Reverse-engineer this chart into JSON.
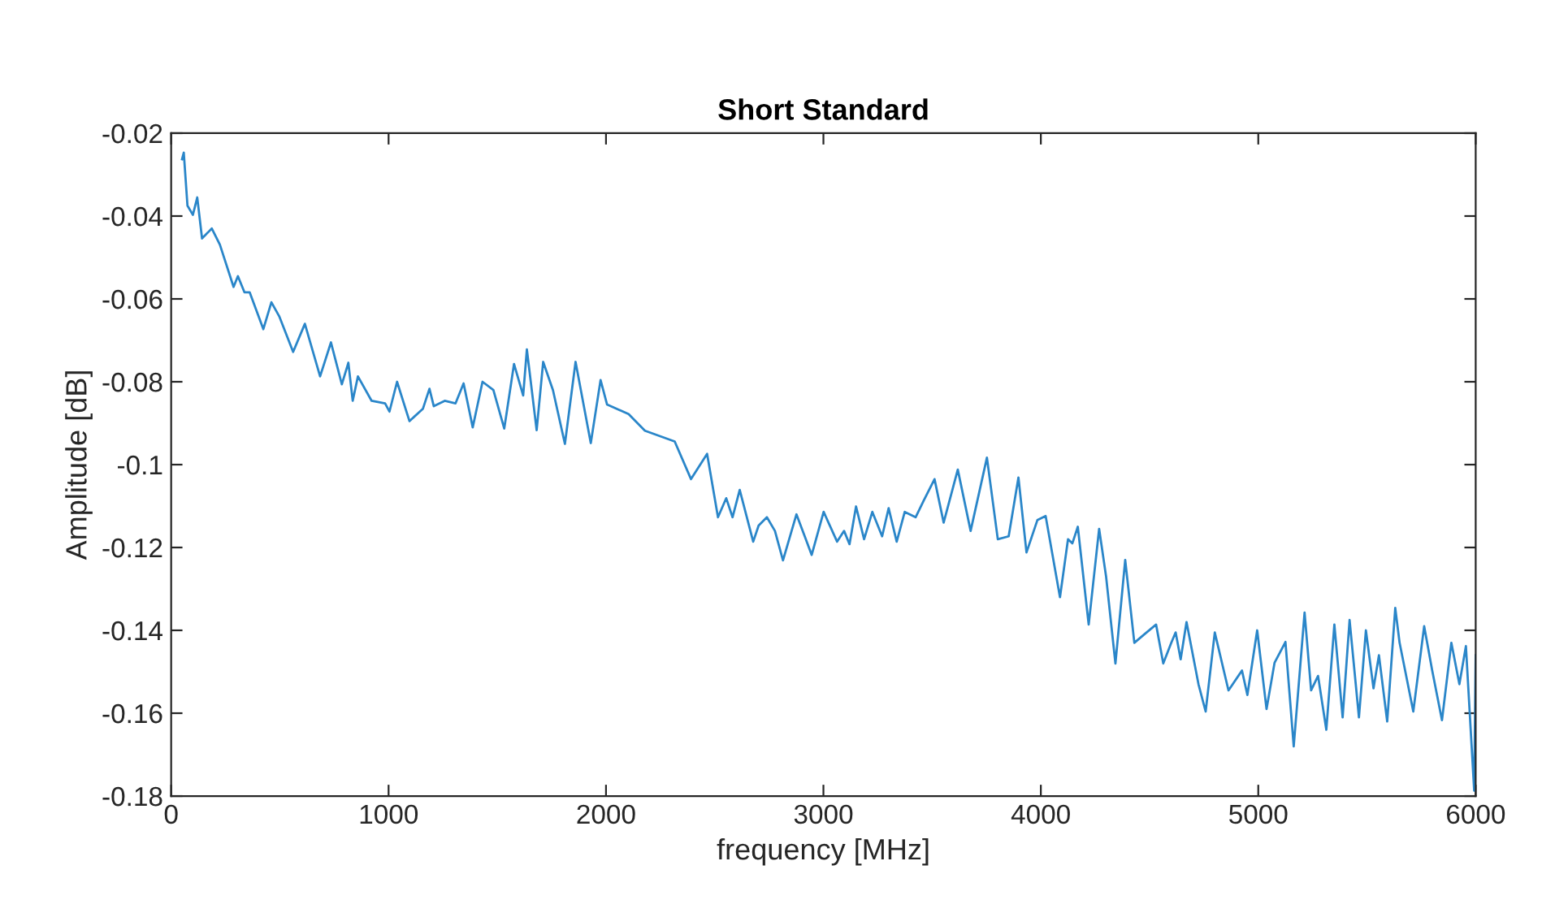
{
  "chart_data": {
    "type": "line",
    "title": "Short Standard",
    "xlabel": "frequency [MHz]",
    "ylabel": "Amplitude [dB]",
    "xlim": [
      0,
      6000
    ],
    "ylim": [
      -0.18,
      -0.02
    ],
    "xticks": [
      0,
      1000,
      2000,
      3000,
      4000,
      5000,
      6000
    ],
    "yticks": [
      -0.18,
      -0.16,
      -0.14,
      -0.12,
      -0.1,
      -0.08,
      -0.06,
      -0.04,
      -0.02
    ],
    "grid": false,
    "series": [
      {
        "color": "#2a86c9",
        "x": [
          50,
          58,
          75,
          100,
          120,
          142,
          187,
          224,
          287,
          307,
          337,
          361,
          424,
          461,
          498,
          561,
          615,
          685,
          735,
          785,
          815,
          835,
          859,
          922,
          984,
          1004,
          1039,
          1096,
          1158,
          1188,
          1208,
          1258,
          1308,
          1345,
          1387,
          1432,
          1482,
          1532,
          1577,
          1619,
          1636,
          1681,
          1711,
          1756,
          1811,
          1860,
          1930,
          1975,
          2005,
          2104,
          2179,
          2316,
          2391,
          2465,
          2515,
          2553,
          2582,
          2615,
          2677,
          2702,
          2740,
          2777,
          2814,
          2876,
          2914,
          2946,
          3001,
          3063,
          3095,
          3120,
          3150,
          3187,
          3225,
          3270,
          3300,
          3337,
          3374,
          3424,
          3461,
          3511,
          3553,
          3618,
          3677,
          3752,
          3802,
          3852,
          3897,
          3934,
          3984,
          4022,
          4088,
          4125,
          4145,
          4170,
          4220,
          4268,
          4300,
          4343,
          4388,
          4430,
          4475,
          4530,
          4563,
          4600,
          4620,
          4643,
          4670,
          4725,
          4758,
          4800,
          4863,
          4925,
          4950,
          4995,
          5038,
          5075,
          5125,
          5163,
          5213,
          5243,
          5275,
          5313,
          5350,
          5388,
          5420,
          5463,
          5495,
          5530,
          5555,
          5593,
          5630,
          5650,
          5713,
          5763,
          5800,
          5845,
          5888,
          5925,
          5955,
          5993,
          6000
        ],
        "values": [
          -0.0263,
          -0.0247,
          -0.0375,
          -0.0397,
          -0.0355,
          -0.0454,
          -0.043,
          -0.0469,
          -0.0571,
          -0.0545,
          -0.0584,
          -0.0584,
          -0.0673,
          -0.0608,
          -0.0643,
          -0.0728,
          -0.066,
          -0.0787,
          -0.0705,
          -0.0806,
          -0.0754,
          -0.0846,
          -0.0787,
          -0.0846,
          -0.0852,
          -0.0872,
          -0.08,
          -0.0895,
          -0.0865,
          -0.0817,
          -0.0859,
          -0.0846,
          -0.0852,
          -0.0804,
          -0.091,
          -0.08,
          -0.082,
          -0.0913,
          -0.0757,
          -0.0833,
          -0.0722,
          -0.0917,
          -0.0752,
          -0.082,
          -0.095,
          -0.0752,
          -0.0948,
          -0.0796,
          -0.0855,
          -0.0878,
          -0.0918,
          -0.0944,
          -0.1035,
          -0.0974,
          -0.1127,
          -0.1081,
          -0.1127,
          -0.1061,
          -0.1186,
          -0.1147,
          -0.1127,
          -0.116,
          -0.1231,
          -0.112,
          -0.1173,
          -0.1218,
          -0.1114,
          -0.1186,
          -0.116,
          -0.1192,
          -0.1101,
          -0.118,
          -0.1114,
          -0.1173,
          -0.1105,
          -0.1186,
          -0.1114,
          -0.1127,
          -0.1087,
          -0.1035,
          -0.114,
          -0.1012,
          -0.116,
          -0.0983,
          -0.118,
          -0.1173,
          -0.1031,
          -0.1212,
          -0.1134,
          -0.1124,
          -0.132,
          -0.118,
          -0.119,
          -0.115,
          -0.1386,
          -0.1155,
          -0.127,
          -0.148,
          -0.123,
          -0.143,
          -0.141,
          -0.1386,
          -0.148,
          -0.143,
          -0.1405,
          -0.147,
          -0.138,
          -0.153,
          -0.1596,
          -0.1405,
          -0.1545,
          -0.1497,
          -0.1556,
          -0.14,
          -0.159,
          -0.1478,
          -0.1428,
          -0.168,
          -0.1357,
          -0.1545,
          -0.151,
          -0.164,
          -0.1386,
          -0.161,
          -0.1375,
          -0.161,
          -0.14,
          -0.154,
          -0.146,
          -0.162,
          -0.1346,
          -0.143,
          -0.1596,
          -0.139,
          -0.1497,
          -0.1617,
          -0.143,
          -0.153,
          -0.1438,
          -0.1787,
          -0.146
        ]
      }
    ]
  }
}
